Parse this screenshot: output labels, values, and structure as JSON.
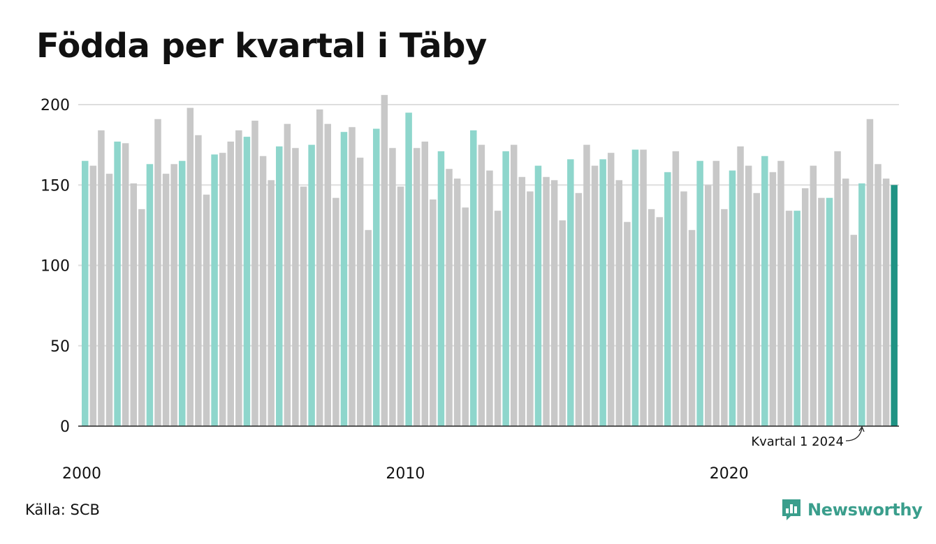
{
  "title": "Födda per kvartal i Täby",
  "source": "Källa: SCB",
  "brand": {
    "name": "Newsworthy",
    "icon": "newsworthy-logo-icon",
    "color": "#3a9e8c"
  },
  "chart_data": {
    "type": "bar",
    "title": "Födda per kvartal i Täby",
    "xlabel": "",
    "ylabel": "",
    "ylim": [
      0,
      210
    ],
    "yticks": [
      0,
      50,
      100,
      150,
      200
    ],
    "xtick_labels": [
      {
        "year": 2000,
        "label": "2000"
      },
      {
        "year": 2010,
        "label": "2010"
      },
      {
        "year": 2020,
        "label": "2020"
      }
    ],
    "grid": true,
    "colors": {
      "q1": "#8ed6cc",
      "other": "#c8c8c8",
      "latest": "#1f9384"
    },
    "annotation": {
      "text": "Kvartal 1 2024",
      "target": "2024 Q1"
    },
    "start_year": 2000,
    "values": [
      165,
      162,
      184,
      157,
      177,
      176,
      151,
      135,
      163,
      191,
      157,
      163,
      165,
      198,
      181,
      144,
      169,
      170,
      177,
      184,
      180,
      190,
      168,
      153,
      174,
      188,
      173,
      149,
      175,
      197,
      188,
      142,
      183,
      186,
      167,
      122,
      185,
      206,
      173,
      149,
      195,
      173,
      177,
      141,
      171,
      160,
      154,
      136,
      184,
      175,
      159,
      134,
      171,
      175,
      155,
      146,
      162,
      155,
      153,
      128,
      166,
      145,
      175,
      162,
      166,
      170,
      153,
      127,
      172,
      172,
      135,
      130,
      158,
      171,
      146,
      122,
      165,
      150,
      165,
      135,
      159,
      174,
      162,
      145,
      168,
      158,
      165,
      134,
      134,
      148,
      162,
      142,
      142,
      171,
      154,
      119,
      151,
      191,
      163,
      154,
      150
    ]
  }
}
